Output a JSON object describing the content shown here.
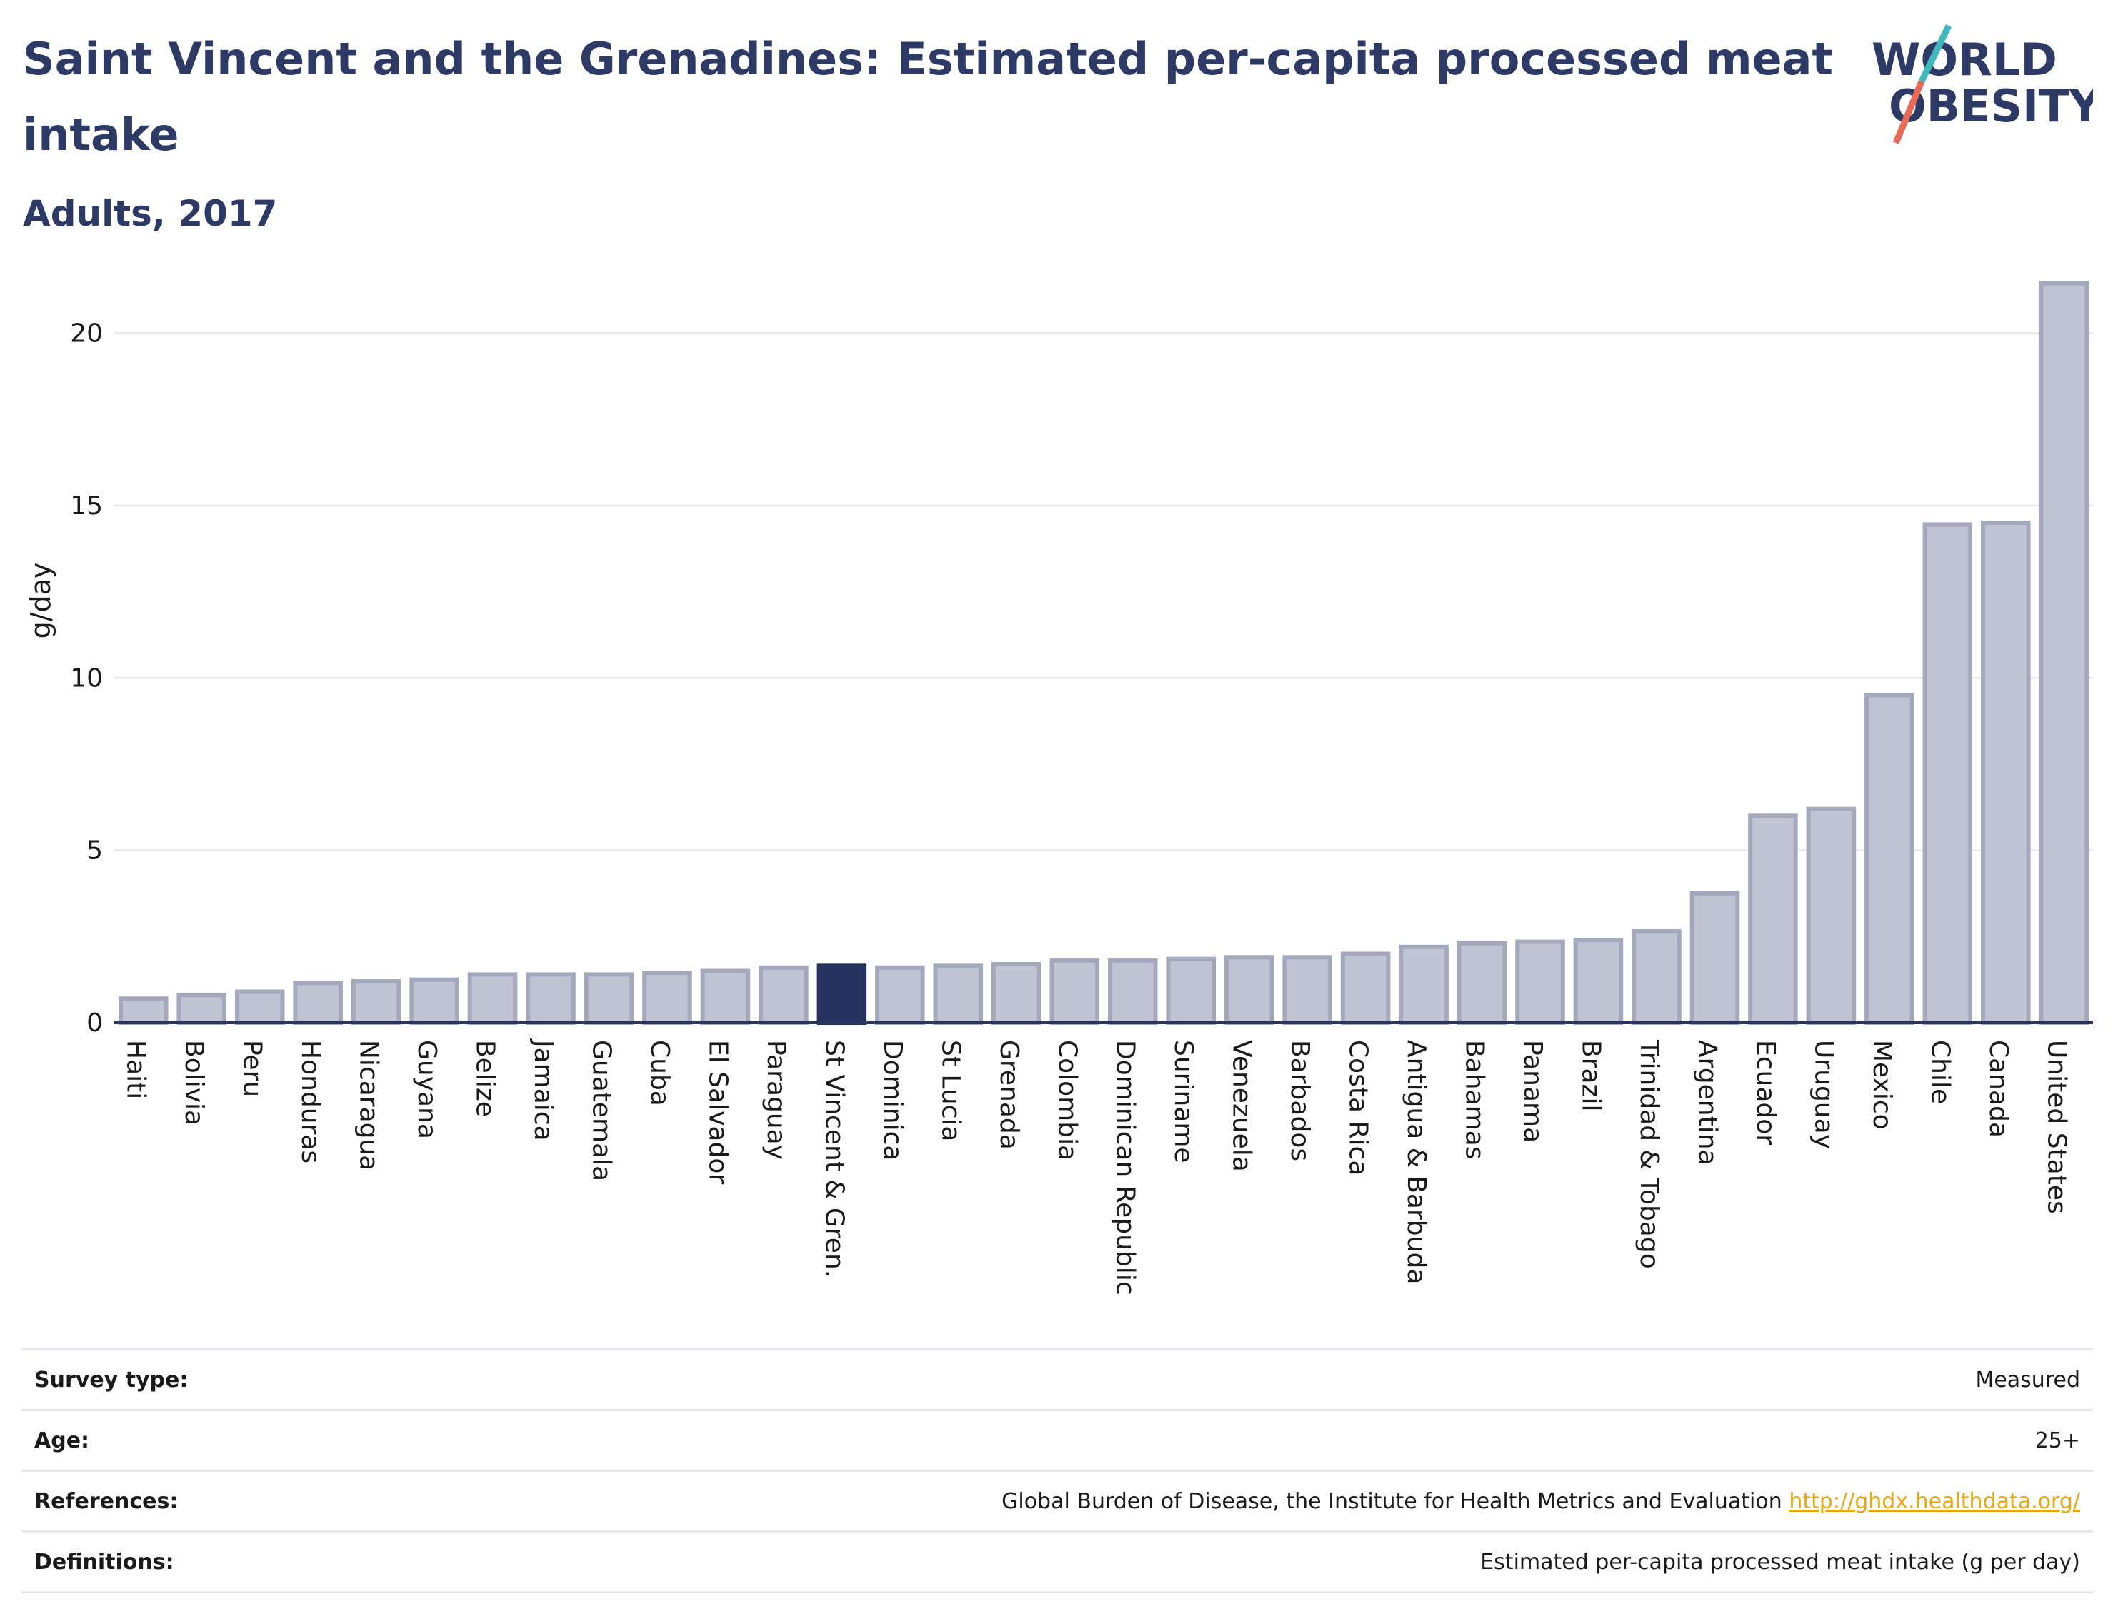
{
  "title": "Saint Vincent and the Grenadines: Estimated per-capita processed meat intake",
  "subtitle": "Adults, 2017",
  "logo": {
    "line1": "WORLD",
    "line2": "OBESITY",
    "slash_colors": [
      "#3fb8c0",
      "#e86b5a"
    ]
  },
  "chart_data": {
    "type": "bar",
    "ylabel": "g/day",
    "ylim": [
      0,
      22
    ],
    "yticks": [
      0,
      5,
      10,
      15,
      20
    ],
    "grid": true,
    "highlight": "St Vincent & Gren.",
    "colors": {
      "bar": "#c0c4d2",
      "bar_edge": "#a3a8bd",
      "highlight": "#26325e",
      "grid": "#e8e9ee",
      "axis": "#2a3560"
    },
    "categories": [
      "Haiti",
      "Bolivia",
      "Peru",
      "Honduras",
      "Nicaragua",
      "Guyana",
      "Belize",
      "Jamaica",
      "Guatemala",
      "Cuba",
      "El Salvador",
      "Paraguay",
      "St Vincent & Gren.",
      "Dominica",
      "St Lucia",
      "Grenada",
      "Colombia",
      "Dominican Republic",
      "Suriname",
      "Venezuela",
      "Barbados",
      "Costa Rica",
      "Antigua & Barbuda",
      "Bahamas",
      "Panama",
      "Brazil",
      "Trinidad & Tobago",
      "Argentina",
      "Ecuador",
      "Uruguay",
      "Mexico",
      "Chile",
      "Canada",
      "United States"
    ],
    "values": [
      0.7,
      0.8,
      0.9,
      1.15,
      1.2,
      1.25,
      1.4,
      1.4,
      1.4,
      1.45,
      1.5,
      1.6,
      1.65,
      1.6,
      1.65,
      1.7,
      1.8,
      1.8,
      1.85,
      1.9,
      1.9,
      2.0,
      2.2,
      2.3,
      2.35,
      2.4,
      2.65,
      3.75,
      6.0,
      6.2,
      9.5,
      14.45,
      14.5,
      21.45
    ]
  },
  "info": {
    "survey_type": {
      "label": "Survey type:",
      "value": "Measured"
    },
    "age": {
      "label": "Age:",
      "value": "25+"
    },
    "references": {
      "label": "References:",
      "value": "Global Burden of Disease, the Institute for Health Metrics and Evaluation",
      "link": "http://ghdx.healthdata.org/"
    },
    "definitions": {
      "label": "Definitions:",
      "value": "Estimated per-capita processed meat intake (g per day)"
    }
  }
}
